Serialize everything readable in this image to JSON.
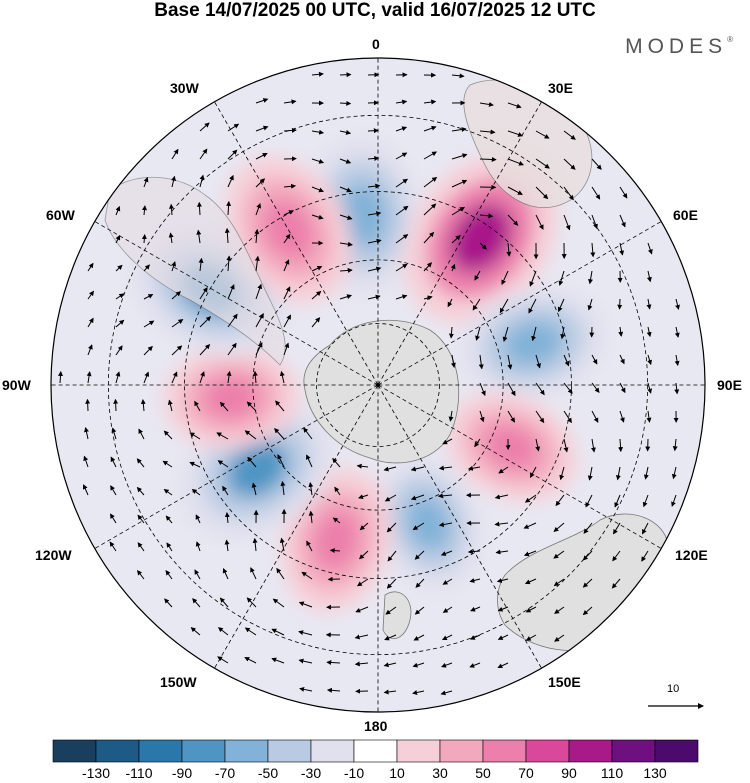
{
  "title": "Base 14/07/2025 00 UTC, valid 16/07/2025 12 UTC",
  "brand": "MODES",
  "brand_mark": "®",
  "longitude_labels": {
    "n0": "0",
    "e30": "30E",
    "e60": "60E",
    "e90": "90E",
    "e120": "120E",
    "e150": "150E",
    "s180": "180",
    "w150": "150W",
    "w120": "120W",
    "w90": "90W",
    "w60": "60W",
    "w30": "30W"
  },
  "reference_vector": {
    "label": "10",
    "value": 10
  },
  "colorbar": {
    "ticks": [
      "-130",
      "-110",
      "-90",
      "-70",
      "-50",
      "-30",
      "-10",
      "10",
      "30",
      "50",
      "70",
      "90",
      "110",
      "130"
    ],
    "colors": [
      "#1a3f5e",
      "#1d5b86",
      "#2a78ab",
      "#4f95c4",
      "#82b2d8",
      "#b9cbe3",
      "#e0e0ee",
      "#ffffff",
      "#f6d0d8",
      "#f3a9bd",
      "#ec7fab",
      "#d9489a",
      "#a8198a",
      "#6f0f80",
      "#4a0a6e"
    ]
  },
  "map_data": {
    "projection": "south polar stereographic",
    "field_units": "anomaly",
    "anomaly_centers": [
      {
        "lon": -5,
        "lat": -50,
        "value": -80,
        "type": "negative"
      },
      {
        "lon": 35,
        "lat": -48,
        "value": 110,
        "type": "positive"
      },
      {
        "lon": 75,
        "lat": -52,
        "value": -70,
        "type": "negative"
      },
      {
        "lon": 115,
        "lat": -55,
        "value": 60,
        "type": "positive"
      },
      {
        "lon": 160,
        "lat": -55,
        "value": -60,
        "type": "negative"
      },
      {
        "lon": -165,
        "lat": -52,
        "value": 70,
        "type": "positive"
      },
      {
        "lon": -125,
        "lat": -55,
        "value": -90,
        "type": "negative"
      },
      {
        "lon": -95,
        "lat": -55,
        "value": 60,
        "type": "positive"
      },
      {
        "lon": -60,
        "lat": -45,
        "value": -90,
        "type": "negative"
      },
      {
        "lon": -30,
        "lat": -48,
        "value": 80,
        "type": "positive"
      }
    ]
  }
}
